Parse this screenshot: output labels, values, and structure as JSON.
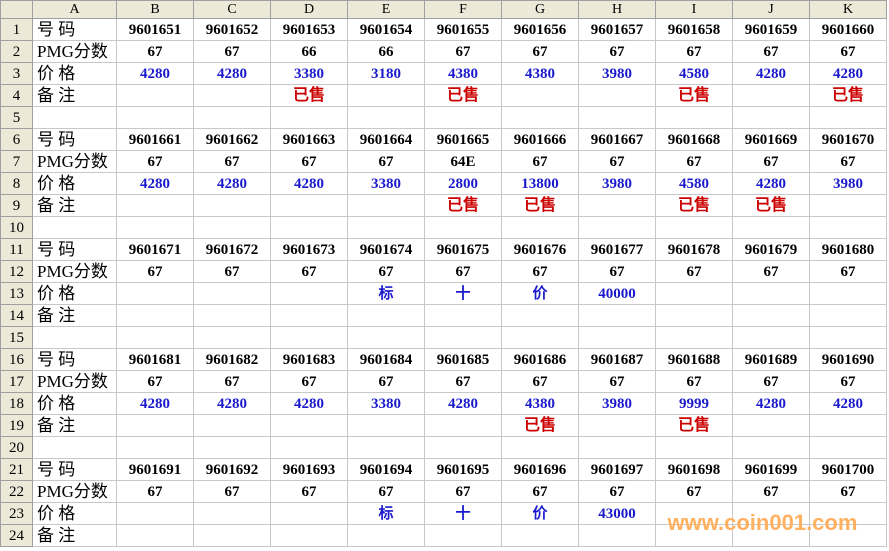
{
  "columns": [
    "A",
    "B",
    "C",
    "D",
    "E",
    "F",
    "G",
    "H",
    "I",
    "J",
    "K"
  ],
  "rows": [
    [
      "号  码",
      "9601651",
      "9601652",
      "9601653",
      "9601654",
      "9601655",
      "9601656",
      "9601657",
      "9601658",
      "9601659",
      "9601660"
    ],
    [
      "PMG分数",
      "67",
      "67",
      "66",
      "66",
      "67",
      "67",
      "67",
      "67",
      "67",
      "67"
    ],
    [
      "价  格",
      "4280",
      "4280",
      "3380",
      "3180",
      "4380",
      "4380",
      "3980",
      "4580",
      "4280",
      "4280"
    ],
    [
      "备  注",
      "",
      "",
      "已售",
      "",
      "已售",
      "",
      "",
      "已售",
      "",
      "已售"
    ],
    [
      "",
      "",
      "",
      "",
      "",
      "",
      "",
      "",
      "",
      "",
      ""
    ],
    [
      "号  码",
      "9601661",
      "9601662",
      "9601663",
      "9601664",
      "9601665",
      "9601666",
      "9601667",
      "9601668",
      "9601669",
      "9601670"
    ],
    [
      "PMG分数",
      "67",
      "67",
      "67",
      "67",
      "64E",
      "67",
      "67",
      "67",
      "67",
      "67"
    ],
    [
      "价  格",
      "4280",
      "4280",
      "4280",
      "3380",
      "2800",
      "13800",
      "3980",
      "4580",
      "4280",
      "3980"
    ],
    [
      "备  注",
      "",
      "",
      "",
      "",
      "已售",
      "已售",
      "",
      "已售",
      "已售",
      ""
    ],
    [
      "",
      "",
      "",
      "",
      "",
      "",
      "",
      "",
      "",
      "",
      ""
    ],
    [
      "号  码",
      "9601671",
      "9601672",
      "9601673",
      "9601674",
      "9601675",
      "9601676",
      "9601677",
      "9601678",
      "9601679",
      "9601680"
    ],
    [
      "PMG分数",
      "67",
      "67",
      "67",
      "67",
      "67",
      "67",
      "67",
      "67",
      "67",
      "67"
    ],
    [
      "价  格",
      "",
      "",
      "",
      "标",
      "十",
      "价",
      "40000",
      "",
      "",
      ""
    ],
    [
      "备  注",
      "",
      "",
      "",
      "",
      "",
      "",
      "",
      "",
      "",
      ""
    ],
    [
      "",
      "",
      "",
      "",
      "",
      "",
      "",
      "",
      "",
      "",
      ""
    ],
    [
      "号  码",
      "9601681",
      "9601682",
      "9601683",
      "9601684",
      "9601685",
      "9601686",
      "9601687",
      "9601688",
      "9601689",
      "9601690"
    ],
    [
      "PMG分数",
      "67",
      "67",
      "67",
      "67",
      "67",
      "67",
      "67",
      "67",
      "67",
      "67"
    ],
    [
      "价  格",
      "4280",
      "4280",
      "4280",
      "3380",
      "4280",
      "4380",
      "3980",
      "9999",
      "4280",
      "4280"
    ],
    [
      "备  注",
      "",
      "",
      "",
      "",
      "",
      "已售",
      "",
      "已售",
      "",
      ""
    ],
    [
      "",
      "",
      "",
      "",
      "",
      "",
      "",
      "",
      "",
      "",
      ""
    ],
    [
      "号  码",
      "9601691",
      "9601692",
      "9601693",
      "9601694",
      "9601695",
      "9601696",
      "9601697",
      "9601698",
      "9601699",
      "9601700"
    ],
    [
      "PMG分数",
      "67",
      "67",
      "67",
      "67",
      "67",
      "67",
      "67",
      "67",
      "67",
      "67"
    ],
    [
      "价  格",
      "",
      "",
      "",
      "标",
      "十",
      "价",
      "43000",
      "",
      "",
      ""
    ],
    [
      "备  注",
      "",
      "",
      "",
      "",
      "",
      "",
      "",
      "",
      "",
      ""
    ]
  ],
  "colors": {
    "price": "#1a1acc",
    "sold": "#cc0000",
    "header_bg": "#ece9d8"
  },
  "watermark": "www.coin001.com"
}
